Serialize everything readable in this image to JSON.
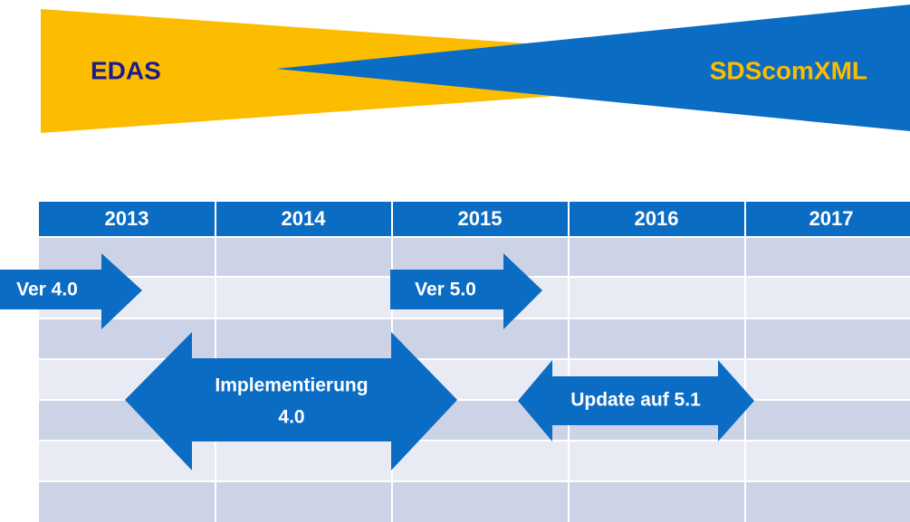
{
  "header": {
    "left": "EDAS",
    "right": "SDScomXML"
  },
  "table": {
    "years": [
      "2013",
      "2014",
      "2015",
      "2016",
      "2017"
    ]
  },
  "arrows": [
    {
      "label": "Ver 4.0"
    },
    {
      "label": "Ver 5.0"
    },
    {
      "lines": [
        "Implementierung",
        "4.0"
      ]
    },
    {
      "label": "Update auf 5.1"
    }
  ]
}
